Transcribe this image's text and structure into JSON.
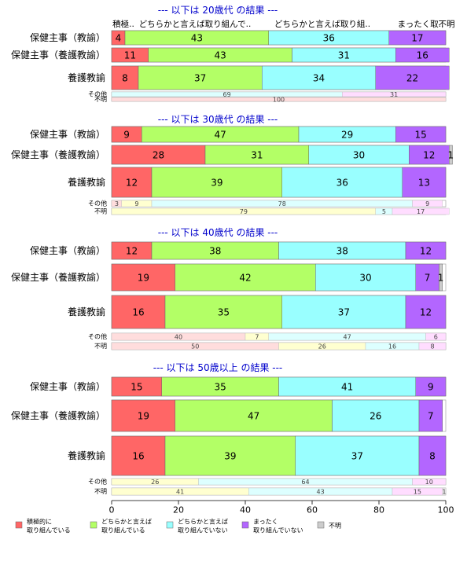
{
  "chart_data": {
    "type": "bar",
    "orientation": "horizontal-stacked-percent",
    "xlim": [
      0,
      100
    ],
    "xticks": [
      "0",
      "20",
      "40",
      "60",
      "80",
      "100"
    ],
    "header_labels": [
      "積極..",
      "どちらかと言えば取り組んで..",
      "どちらかと言えば取り組..",
      "まったく取..",
      "不明"
    ],
    "colors": {
      "active": "#ff6666",
      "somewhat_active": "#b3ff66",
      "somewhat_inactive": "#99ffff",
      "inactive": "#b366ff",
      "unknown": "#cccccc"
    },
    "legend": [
      {
        "key": "active",
        "line1": "積極的に",
        "line2": "取り組んでいる"
      },
      {
        "key": "somewhat_active",
        "line1": "どちらかと言えば",
        "line2": "取り組んでいる"
      },
      {
        "key": "somewhat_inactive",
        "line1": "どちらかと言えば",
        "line2": "取り組んでいない"
      },
      {
        "key": "inactive",
        "line1": "まったく",
        "line2": "取り組んでいない"
      },
      {
        "key": "unknown",
        "line1": "不明",
        "line2": ""
      }
    ],
    "panels": [
      {
        "title": "--- 以下は 20歳代 の結果 ---",
        "rows": [
          {
            "label": "保健主事（教諭）",
            "size": "big",
            "values": [
              4,
              43,
              36,
              17,
              0
            ],
            "labels": [
              "4",
              "43",
              "36",
              "17",
              ""
            ]
          },
          {
            "label": "保健主事（養護教諭）",
            "size": "big",
            "values": [
              11,
              43,
              31,
              16,
              0
            ],
            "labels": [
              "11",
              "43",
              "31",
              "16",
              ""
            ]
          },
          {
            "label": "養護教諭",
            "size": "big",
            "values": [
              8,
              37,
              34,
              22,
              0
            ],
            "labels": [
              "8",
              "37",
              "34",
              "22",
              ""
            ]
          },
          {
            "label": "その他",
            "size": "small",
            "values": [
              0,
              0,
              69,
              31,
              0
            ],
            "labels": [
              "",
              "",
              "69",
              "31",
              ""
            ]
          },
          {
            "label": "不明",
            "size": "small",
            "values": [
              100,
              0,
              0,
              0,
              0
            ],
            "labels": [
              "100",
              "",
              "",
              "",
              ""
            ]
          }
        ]
      },
      {
        "title": "--- 以下は 30歳代 の結果 ---",
        "rows": [
          {
            "label": "保健主事（教諭）",
            "size": "big",
            "values": [
              9,
              47,
              29,
              15,
              0
            ],
            "labels": [
              "9",
              "47",
              "29",
              "15",
              ""
            ]
          },
          {
            "label": "保健主事（養護教諭）",
            "size": "big",
            "values": [
              28,
              31,
              30,
              12,
              1
            ],
            "labels": [
              "28",
              "31",
              "30",
              "12",
              "1"
            ]
          },
          {
            "label": "養護教諭",
            "size": "big",
            "values": [
              12,
              39,
              36,
              13,
              0
            ],
            "labels": [
              "12",
              "39",
              "36",
              "13",
              ""
            ]
          },
          {
            "label": "その他",
            "size": "small",
            "values": [
              3,
              9,
              78,
              9,
              0
            ],
            "labels": [
              "3",
              "9",
              "78",
              "9",
              ""
            ]
          },
          {
            "label": "不明",
            "size": "small",
            "values": [
              0,
              79,
              5,
              17,
              0
            ],
            "labels": [
              "",
              "79",
              "5",
              "17",
              ""
            ]
          }
        ]
      },
      {
        "title": "--- 以下は 40歳代 の結果 ---",
        "rows": [
          {
            "label": "保健主事（教諭）",
            "size": "big",
            "values": [
              12,
              38,
              38,
              12,
              0
            ],
            "labels": [
              "12",
              "38",
              "38",
              "12",
              ""
            ]
          },
          {
            "label": "保健主事（養護教諭）",
            "size": "big",
            "values": [
              19,
              42,
              30,
              7,
              1
            ],
            "labels": [
              "19",
              "42",
              "30",
              "7",
              "1"
            ]
          },
          {
            "label": "養護教諭",
            "size": "big",
            "values": [
              16,
              35,
              37,
              12,
              0
            ],
            "labels": [
              "16",
              "35",
              "37",
              "12",
              ""
            ]
          },
          {
            "label": "その他",
            "size": "small",
            "values": [
              40,
              7,
              47,
              6,
              0
            ],
            "labels": [
              "40",
              "7",
              "47",
              "6",
              ""
            ]
          },
          {
            "label": "不明",
            "size": "small",
            "values": [
              50,
              26,
              16,
              8,
              0
            ],
            "labels": [
              "50",
              "26",
              "16",
              "8",
              ""
            ]
          }
        ]
      },
      {
        "title": "--- 以下は 50歳以上 の結果 ---",
        "rows": [
          {
            "label": "保健主事（教諭）",
            "size": "big",
            "values": [
              15,
              35,
              41,
              9,
              0
            ],
            "labels": [
              "15",
              "35",
              "41",
              "9",
              ""
            ]
          },
          {
            "label": "保健主事（養護教諭）",
            "size": "big",
            "values": [
              19,
              47,
              26,
              7,
              0
            ],
            "labels": [
              "19",
              "47",
              "26",
              "7",
              ""
            ]
          },
          {
            "label": "養護教諭",
            "size": "big",
            "values": [
              16,
              39,
              37,
              8,
              0
            ],
            "labels": [
              "16",
              "39",
              "37",
              "8",
              ""
            ]
          },
          {
            "label": "その他",
            "size": "small",
            "values": [
              0,
              26,
              64,
              10,
              0
            ],
            "labels": [
              "",
              "26",
              "64",
              "10",
              ""
            ]
          },
          {
            "label": "不明",
            "size": "small",
            "values": [
              0,
              41,
              43,
              15,
              1
            ],
            "labels": [
              "",
              "41",
              "43",
              "15",
              "1"
            ]
          }
        ]
      }
    ]
  }
}
